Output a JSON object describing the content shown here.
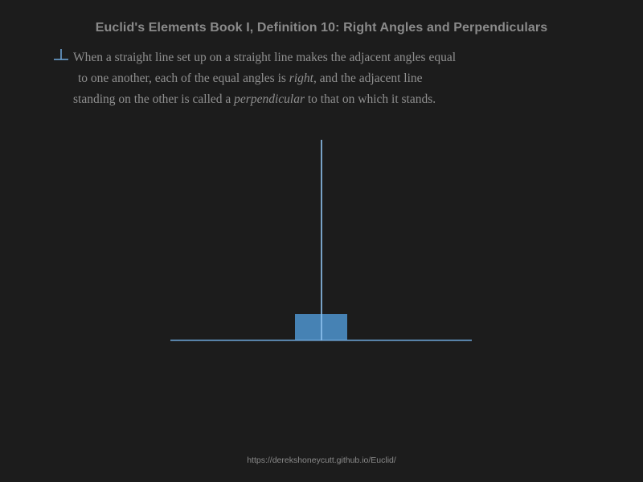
{
  "header": {
    "title": "Euclid's Elements Book I, Definition 10: Right Angles and Perpendiculars"
  },
  "definition": {
    "icon": "perpendicular-icon",
    "line1": "When a straight line set up on a straight line makes the adjacent angles equal",
    "line2_pre": "to one another, each of the equal angles is ",
    "line2_em": "right",
    "line2_post": ", and the adjacent line",
    "line3_pre": "standing on the other is called a ",
    "line3_em": "perpendicular",
    "line3_post": " to that on which it stands."
  },
  "colors": {
    "background": "#1c1c1c",
    "line": "#6fa8dc",
    "right_angle_fill": "#4682b4"
  },
  "footer": {
    "url": "https://derekshoneycutt.github.io/Euclid/"
  }
}
